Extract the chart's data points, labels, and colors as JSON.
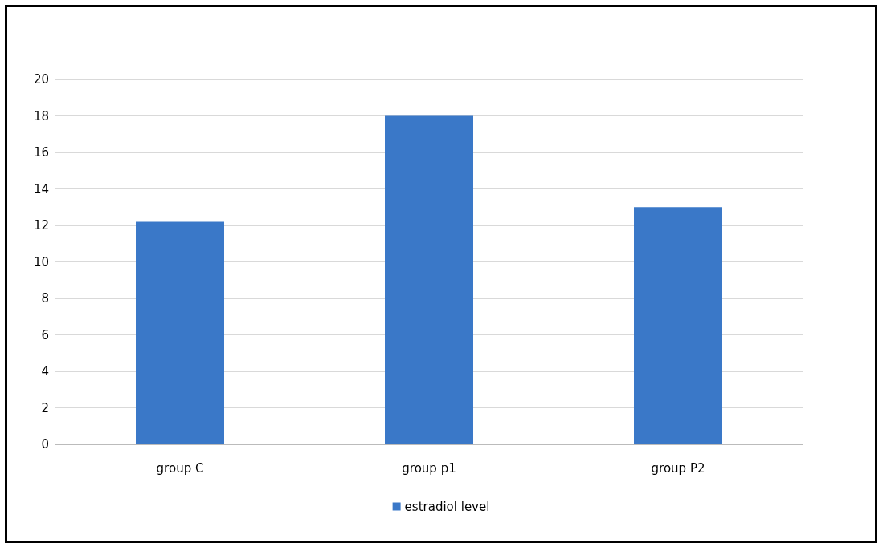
{
  "chart_data": {
    "type": "bar",
    "categories": [
      "group C",
      "group p1",
      "group P2"
    ],
    "series": [
      {
        "name": "estradiol level",
        "color": "#3a78c8",
        "values": [
          12.2,
          18.0,
          13.0
        ]
      }
    ],
    "ylim": [
      0,
      20
    ],
    "yticks": [
      0,
      2,
      4,
      6,
      8,
      10,
      12,
      14,
      16,
      18,
      20
    ],
    "grid": "y",
    "legend": "bottom"
  }
}
